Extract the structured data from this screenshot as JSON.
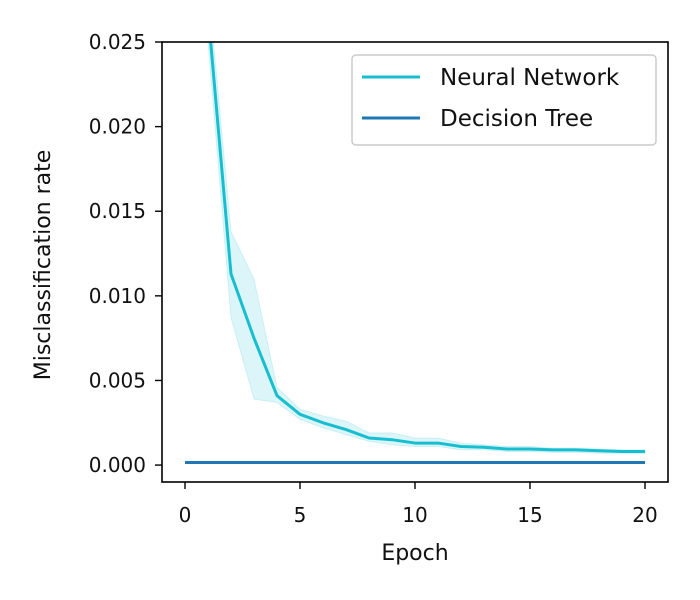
{
  "chart_data": {
    "type": "line",
    "title": "",
    "xlabel": "Epoch",
    "ylabel": "Misclassification rate",
    "xlim": [
      -1,
      21
    ],
    "ylim": [
      -0.001,
      0.025
    ],
    "x_ticks": [
      0,
      5,
      10,
      15,
      20
    ],
    "x_tick_labels": [
      "0",
      "5",
      "10",
      "15",
      "20"
    ],
    "y_ticks": [
      0.0,
      0.005,
      0.01,
      0.015,
      0.02,
      0.025
    ],
    "y_tick_labels": [
      "0.000",
      "0.005",
      "0.010",
      "0.015",
      "0.020",
      "0.025"
    ],
    "grid": false,
    "legend_position": "top-right",
    "series": [
      {
        "name": "Neural Network",
        "color": "#17becf",
        "x": [
          1,
          2,
          3,
          4,
          5,
          6,
          7,
          8,
          9,
          10,
          11,
          12,
          13,
          14,
          15,
          16,
          17,
          18,
          19,
          20
        ],
        "values": [
          0.0268,
          0.0113,
          0.0075,
          0.0041,
          0.003,
          0.0025,
          0.0021,
          0.0016,
          0.0015,
          0.0013,
          0.0013,
          0.0011,
          0.00105,
          0.00095,
          0.00095,
          0.0009,
          0.0009,
          0.00085,
          0.0008,
          0.0008
        ],
        "band_upper": [
          0.0285,
          0.0138,
          0.011,
          0.0046,
          0.0033,
          0.0029,
          0.0026,
          0.0019,
          0.0019,
          0.0016,
          0.0016,
          0.0013,
          0.0012,
          0.0011,
          0.0011,
          0.001,
          0.001,
          0.00095,
          0.0009,
          0.0009
        ],
        "band_lower": [
          0.025,
          0.0087,
          0.0039,
          0.0037,
          0.0027,
          0.0022,
          0.0018,
          0.0014,
          0.0012,
          0.0011,
          0.0011,
          0.0009,
          0.0009,
          0.0008,
          0.0008,
          0.00075,
          0.00075,
          0.0007,
          0.0007,
          0.0007
        ]
      },
      {
        "name": "Decision Tree",
        "color": "#1f77b4",
        "x": [
          0,
          20
        ],
        "values": [
          0.00015,
          0.00015
        ]
      }
    ]
  }
}
